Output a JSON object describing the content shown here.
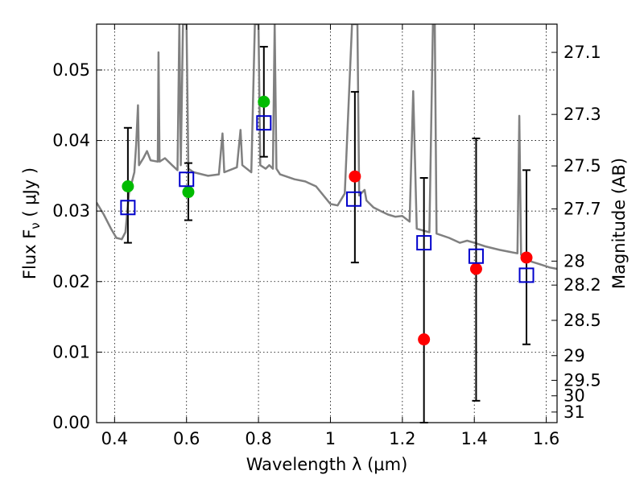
{
  "chart_data": {
    "type": "scatter",
    "xlabel": "Wavelength  λ (μm)",
    "ylabel": "Flux  F",
    "ylabel_sub": "ν",
    "ylabel_unit": "  ( μJy )",
    "y2label": "Magnitude (AB)",
    "xlim": [
      0.35,
      1.63
    ],
    "ylim": [
      0.0,
      0.0565
    ],
    "grid": true,
    "x_ticks": [
      0.4,
      0.6,
      0.8,
      1.0,
      1.2,
      1.4,
      1.6
    ],
    "x_tick_labels": [
      "0.4",
      "0.6",
      "0.8",
      "1",
      "1.2",
      "1.4",
      "1.6"
    ],
    "y_ticks": [
      0.0,
      0.01,
      0.02,
      0.03,
      0.04,
      0.05
    ],
    "y_tick_labels": [
      "0.00",
      "0.01",
      "0.02",
      "0.03",
      "0.04",
      "0.05"
    ],
    "y2_ticks": [
      {
        "label": "27.1",
        "flux": 0.0525
      },
      {
        "label": "27.3",
        "flux": 0.0437
      },
      {
        "label": "27.5",
        "flux": 0.0364
      },
      {
        "label": "27.7",
        "flux": 0.0303
      },
      {
        "label": "28",
        "flux": 0.0229
      },
      {
        "label": "28.2",
        "flux": 0.0195
      },
      {
        "label": "28.5",
        "flux": 0.0145
      },
      {
        "label": "29",
        "flux": 0.0095
      },
      {
        "label": "29.5",
        "flux": 0.006
      },
      {
        "label": "30",
        "flux": 0.0038
      },
      {
        "label": "31",
        "flux": 0.0015
      }
    ],
    "model_spectrum": {
      "color": "#808080",
      "points": [
        [
          0.35,
          0.0312
        ],
        [
          0.37,
          0.0295
        ],
        [
          0.39,
          0.0275
        ],
        [
          0.405,
          0.0262
        ],
        [
          0.42,
          0.026
        ],
        [
          0.43,
          0.027
        ],
        [
          0.44,
          0.0325
        ],
        [
          0.45,
          0.0345
        ],
        [
          0.455,
          0.0355
        ],
        [
          0.46,
          0.0395
        ],
        [
          0.465,
          0.045
        ],
        [
          0.468,
          0.0365
        ],
        [
          0.48,
          0.0375
        ],
        [
          0.49,
          0.0385
        ],
        [
          0.5,
          0.0372
        ],
        [
          0.52,
          0.037
        ],
        [
          0.522,
          0.0525
        ],
        [
          0.525,
          0.037
        ],
        [
          0.54,
          0.0375
        ],
        [
          0.56,
          0.0365
        ],
        [
          0.575,
          0.0358
        ],
        [
          0.58,
          0.0565
        ],
        [
          0.584,
          0.0365
        ],
        [
          0.59,
          0.0565
        ],
        [
          0.595,
          0.0565
        ],
        [
          0.6,
          0.0565
        ],
        [
          0.605,
          0.036
        ],
        [
          0.62,
          0.0355
        ],
        [
          0.66,
          0.035
        ],
        [
          0.69,
          0.0352
        ],
        [
          0.7,
          0.041
        ],
        [
          0.705,
          0.0355
        ],
        [
          0.74,
          0.0362
        ],
        [
          0.75,
          0.0415
        ],
        [
          0.755,
          0.0365
        ],
        [
          0.78,
          0.0355
        ],
        [
          0.79,
          0.0565
        ],
        [
          0.8,
          0.0565
        ],
        [
          0.805,
          0.0365
        ],
        [
          0.82,
          0.036
        ],
        [
          0.83,
          0.0365
        ],
        [
          0.84,
          0.036
        ],
        [
          0.845,
          0.0565
        ],
        [
          0.85,
          0.036
        ],
        [
          0.86,
          0.0352
        ],
        [
          0.9,
          0.0345
        ],
        [
          0.93,
          0.0342
        ],
        [
          0.96,
          0.0335
        ],
        [
          1.0,
          0.031
        ],
        [
          1.02,
          0.0308
        ],
        [
          1.04,
          0.0325
        ],
        [
          1.06,
          0.0565
        ],
        [
          1.075,
          0.0565
        ],
        [
          1.08,
          0.0322
        ],
        [
          1.095,
          0.033
        ],
        [
          1.1,
          0.0315
        ],
        [
          1.12,
          0.0305
        ],
        [
          1.14,
          0.03
        ],
        [
          1.16,
          0.0295
        ],
        [
          1.18,
          0.0292
        ],
        [
          1.2,
          0.0293
        ],
        [
          1.22,
          0.0285
        ],
        [
          1.23,
          0.047
        ],
        [
          1.24,
          0.0275
        ],
        [
          1.26,
          0.0272
        ],
        [
          1.275,
          0.027
        ],
        [
          1.285,
          0.0565
        ],
        [
          1.29,
          0.0565
        ],
        [
          1.295,
          0.0268
        ],
        [
          1.33,
          0.0262
        ],
        [
          1.36,
          0.0255
        ],
        [
          1.38,
          0.0258
        ],
        [
          1.4,
          0.0255
        ],
        [
          1.43,
          0.025
        ],
        [
          1.47,
          0.0245
        ],
        [
          1.5,
          0.0242
        ],
        [
          1.52,
          0.024
        ],
        [
          1.525,
          0.0435
        ],
        [
          1.53,
          0.0238
        ],
        [
          1.56,
          0.0228
        ],
        [
          1.58,
          0.0225
        ],
        [
          1.61,
          0.022
        ],
        [
          1.63,
          0.0218
        ]
      ]
    },
    "model_fluxes": {
      "name": "model",
      "color": "#0000cc",
      "x": [
        0.437,
        0.6,
        0.815,
        1.065,
        1.26,
        1.405,
        1.545
      ],
      "y": [
        0.0305,
        0.0345,
        0.0425,
        0.0317,
        0.0255,
        0.0236,
        0.0209
      ]
    },
    "observed_green": {
      "color": "#00bb00",
      "x": [
        0.437,
        0.605,
        0.815
      ],
      "y": [
        0.0335,
        0.0327,
        0.0455
      ],
      "err_low": [
        0.0255,
        0.0287,
        0.0377
      ],
      "err_high": [
        0.0418,
        0.0368,
        0.0533
      ]
    },
    "observed_red": {
      "color": "#ff0000",
      "x": [
        1.068,
        1.26,
        1.405,
        1.545
      ],
      "y": [
        0.0349,
        0.0118,
        0.0218,
        0.0234
      ],
      "err_low": [
        0.0227,
        0.0,
        0.0031,
        0.0111
      ],
      "err_high": [
        0.0469,
        0.0347,
        0.0403,
        0.0358
      ]
    }
  }
}
